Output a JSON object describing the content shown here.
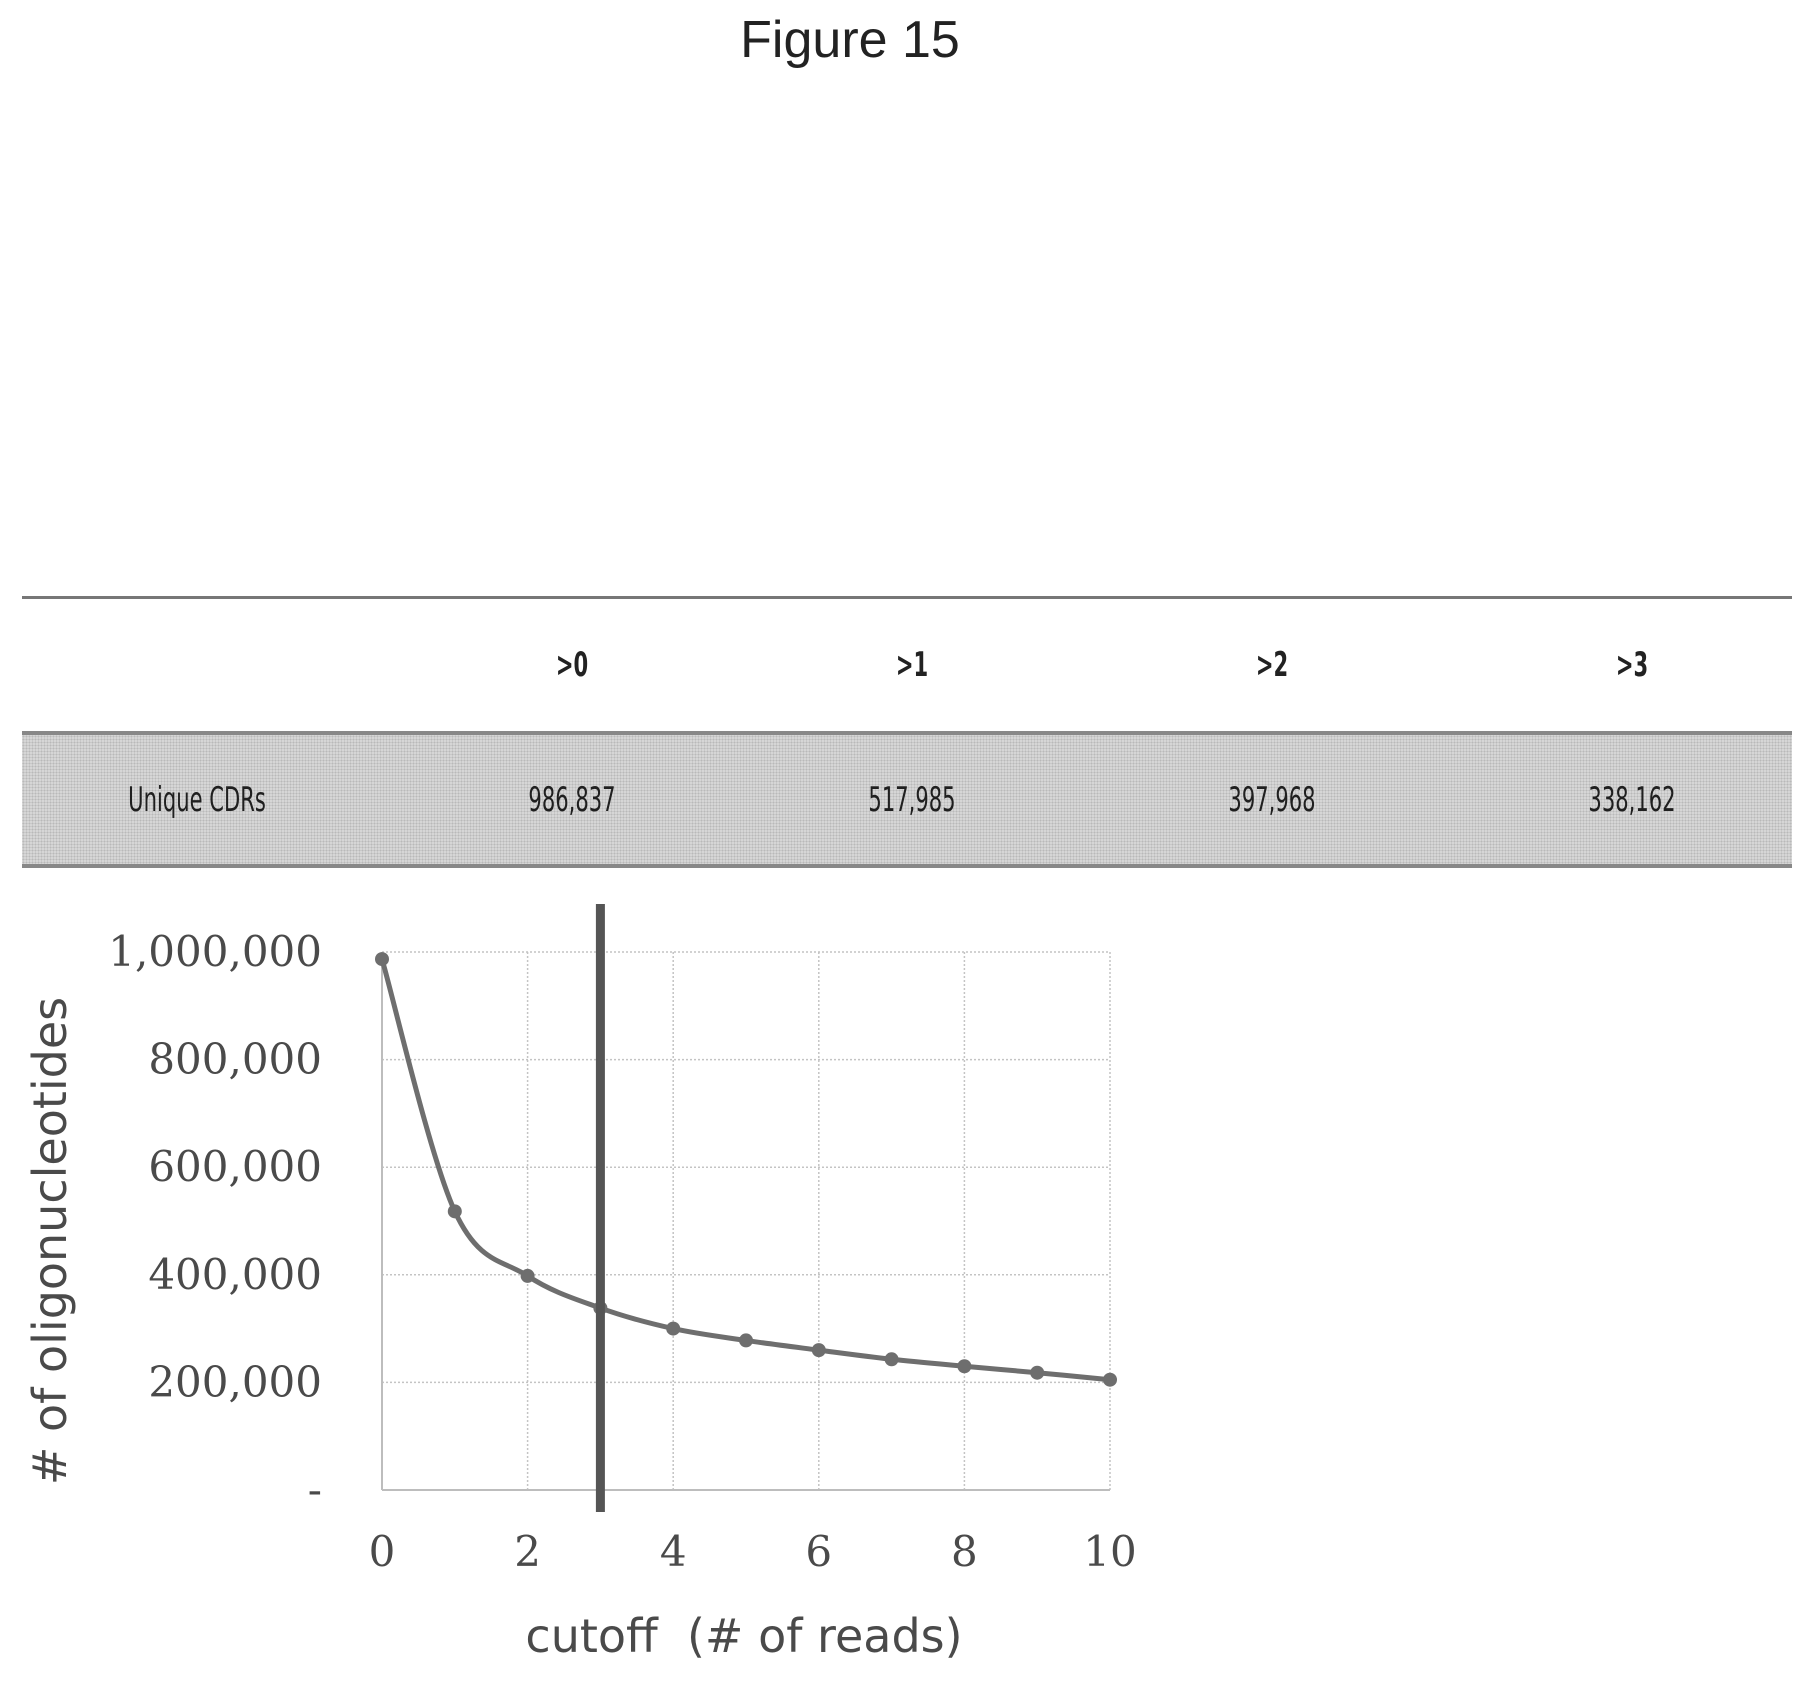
{
  "figure_title": "Figure 15",
  "table": {
    "headers": [
      "",
      ">0",
      ">1",
      ">2",
      ">3"
    ],
    "row": {
      "label": "Unique CDRs",
      "values": [
        "986,837",
        "517,985",
        "397,968",
        "338,162"
      ]
    }
  },
  "chart_data": {
    "type": "line",
    "title": "",
    "xlabel": "cutoff  (# of reads)",
    "ylabel": "# of oligonucleotides",
    "x": [
      0,
      1,
      2,
      3,
      4,
      5,
      6,
      7,
      8,
      9,
      10
    ],
    "series": [
      {
        "values": [
          986837,
          517985,
          397968,
          338162,
          300000,
          278000,
          260000,
          243000,
          230000,
          218000,
          205000
        ]
      }
    ],
    "xlim": [
      0,
      10
    ],
    "ylim": [
      0,
      1000000
    ],
    "x_ticks": [
      0,
      2,
      4,
      6,
      8,
      10
    ],
    "x_tick_labels": [
      "0",
      "2",
      "4",
      "6",
      "8",
      "10"
    ],
    "y_ticks": [
      0,
      200000,
      400000,
      600000,
      800000,
      1000000
    ],
    "y_tick_labels": [
      "-",
      "200,000",
      "400,000",
      "600,000",
      "800,000",
      "1,000,000"
    ],
    "grid": true,
    "vertical_marker_x": 3,
    "line_color": "#6e6e6e",
    "marker_line_color": "#555555"
  }
}
